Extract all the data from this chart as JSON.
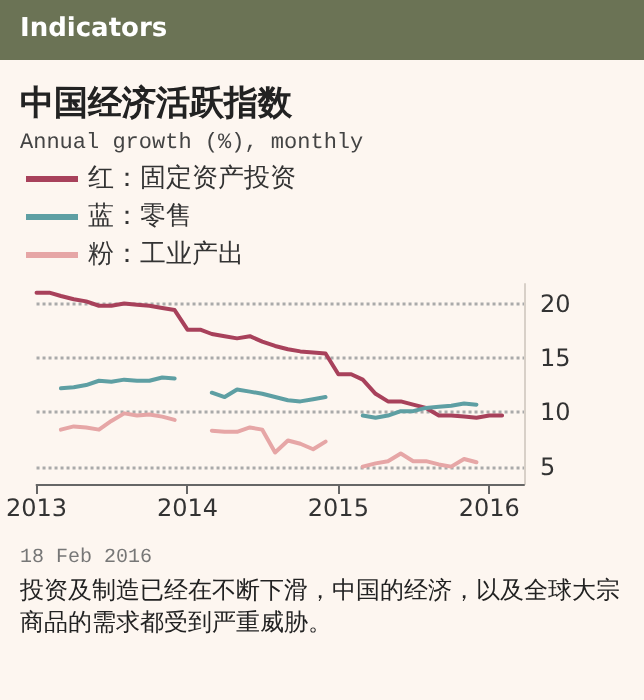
{
  "chart_data": {
    "type": "line",
    "title": "中国经济活跃指数",
    "subtitle": "Annual growth (%), monthly",
    "annotations": [
      "Indicators",
      "18 Feb 2016",
      "投资及制造已经在不断下滑，中国的经济，以及全球大宗商品的需求都受到严重威胁。"
    ],
    "x": [
      "2013-01",
      "2013-02",
      "2013-03",
      "2013-04",
      "2013-05",
      "2013-06",
      "2013-07",
      "2013-08",
      "2013-09",
      "2013-10",
      "2013-11",
      "2013-12",
      "2014-01",
      "2014-02",
      "2014-03",
      "2014-04",
      "2014-05",
      "2014-06",
      "2014-07",
      "2014-08",
      "2014-09",
      "2014-10",
      "2014-11",
      "2014-12",
      "2015-01",
      "2015-02",
      "2015-03",
      "2015-04",
      "2015-05",
      "2015-06",
      "2015-07",
      "2015-08",
      "2015-09",
      "2015-10",
      "2015-11",
      "2015-12",
      "2016-01",
      "2016-02"
    ],
    "series": [
      {
        "name": "红：固定资产投资",
        "color": "#a8415b",
        "values": [
          21.0,
          21.0,
          20.7,
          20.4,
          20.2,
          19.8,
          19.8,
          20.0,
          19.9,
          19.8,
          19.6,
          19.4,
          17.6,
          17.6,
          17.2,
          17.0,
          16.8,
          17.0,
          16.5,
          16.1,
          15.8,
          15.6,
          15.5,
          15.4,
          13.5,
          13.5,
          13.0,
          11.7,
          11.0,
          11.0,
          10.7,
          10.4,
          9.7,
          9.7,
          9.6,
          9.5,
          9.7,
          9.7
        ]
      },
      {
        "name": "蓝：零售",
        "color": "#5e9fa3",
        "values": [
          null,
          null,
          12.2,
          12.3,
          12.5,
          12.9,
          12.8,
          13.0,
          12.9,
          12.9,
          13.2,
          13.1,
          null,
          null,
          11.8,
          11.4,
          12.1,
          11.9,
          11.7,
          11.4,
          11.1,
          11.0,
          11.2,
          11.4,
          null,
          null,
          9.7,
          9.5,
          9.7,
          10.1,
          10.1,
          10.4,
          10.5,
          10.6,
          10.8,
          10.7,
          null,
          null
        ]
      },
      {
        "name": "粉：工业产出",
        "color": "#e6a6a6",
        "values": [
          null,
          null,
          8.4,
          8.7,
          8.6,
          8.4,
          9.2,
          9.9,
          9.7,
          9.8,
          9.6,
          9.3,
          null,
          null,
          8.3,
          8.2,
          8.2,
          8.6,
          8.4,
          6.3,
          7.4,
          7.1,
          6.6,
          7.3,
          null,
          null,
          5.0,
          5.3,
          5.5,
          6.2,
          5.5,
          5.5,
          5.2,
          5.0,
          5.7,
          5.4,
          null,
          null
        ]
      }
    ],
    "xlim": [
      "2013-01",
      "2016-03-25"
    ],
    "xticks": [
      "2013",
      "2014",
      "2015",
      "2016"
    ],
    "ylim": [
      3.4,
      21.8
    ],
    "yticks": [
      5,
      10,
      15,
      20
    ],
    "grid": "y",
    "legend": "top left",
    "marker": "none",
    "line_style": "solid"
  }
}
